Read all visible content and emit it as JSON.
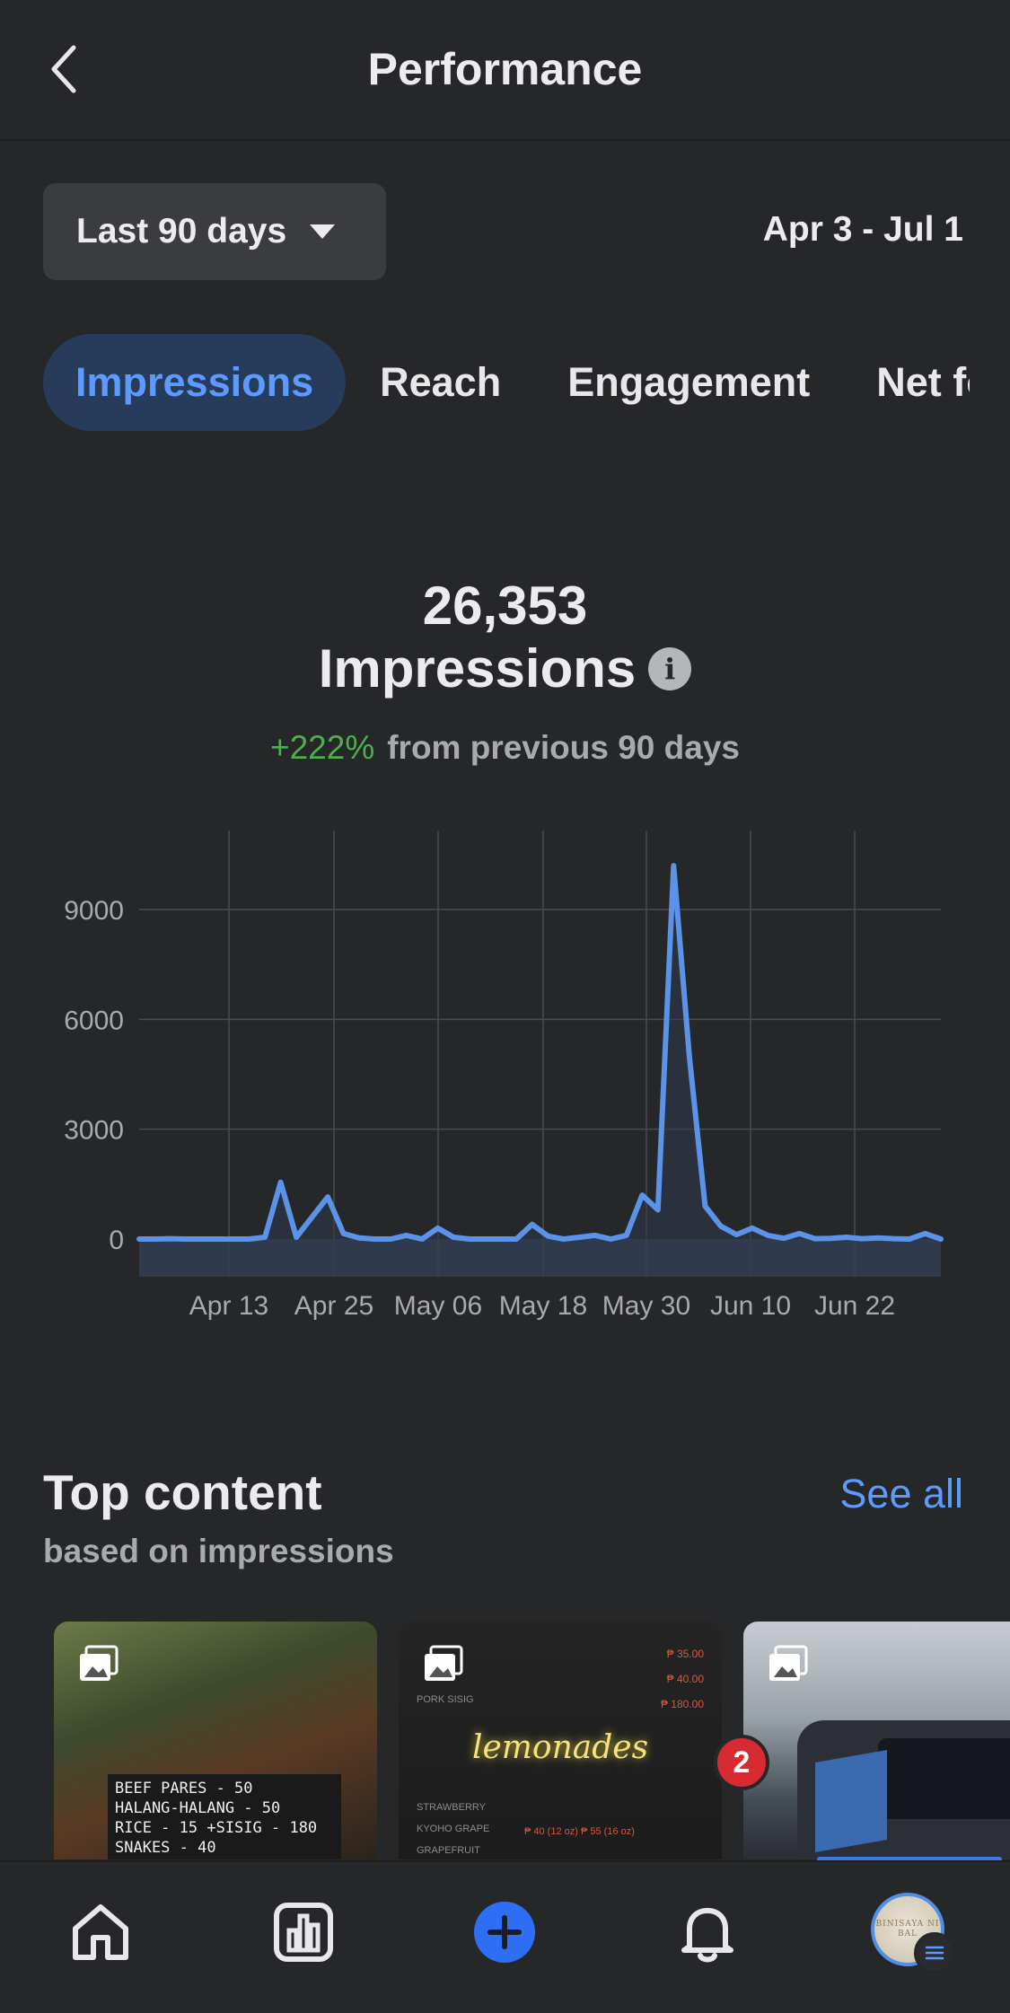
{
  "header": {
    "title": "Performance",
    "back_icon": "chevron-left-icon"
  },
  "filter": {
    "range_label": "Last 90 days",
    "date_range": "Apr 3 - Jul 1"
  },
  "tabs": [
    {
      "label": "Impressions",
      "active": true
    },
    {
      "label": "Reach",
      "active": false
    },
    {
      "label": "Engagement",
      "active": false
    },
    {
      "label": "Net followers",
      "active": false
    }
  ],
  "stat": {
    "value": "26,353",
    "label": "Impressions",
    "change_pct": "+222%",
    "change_text": "from previous 90 days"
  },
  "chart_data": {
    "type": "area",
    "title": "",
    "xlabel": "",
    "ylabel": "",
    "ylim": [
      0,
      10000
    ],
    "yticks": [
      0,
      3000,
      6000,
      9000
    ],
    "grid": true,
    "x_tick_labels": [
      "Apr 13",
      "Apr 25",
      "May 06",
      "May 18",
      "May 30",
      "Jun 10",
      "Jun 22"
    ],
    "x": [
      "Apr 3",
      "Apr 5",
      "Apr 7",
      "Apr 9",
      "Apr 11",
      "Apr 13",
      "Apr 15",
      "Apr 17",
      "Apr 19",
      "Apr 21",
      "Apr 22",
      "Apr 23",
      "Apr 25",
      "Apr 27",
      "Apr 29",
      "May 1",
      "May 3",
      "May 5",
      "May 6",
      "May 8",
      "May 10",
      "May 12",
      "May 14",
      "May 16",
      "May 18",
      "May 19",
      "May 21",
      "May 23",
      "May 25",
      "May 27",
      "May 29",
      "May 30",
      "May 31",
      "Jun 1",
      "Jun 2",
      "Jun 3",
      "Jun 4",
      "Jun 5",
      "Jun 7",
      "Jun 8",
      "Jun 10",
      "Jun 12",
      "Jun 14",
      "Jun 16",
      "Jun 18",
      "Jun 20",
      "Jun 22",
      "Jun 24",
      "Jun 26",
      "Jun 28",
      "Jun 30",
      "Jul 1"
    ],
    "series": [
      {
        "values": [
          0,
          0,
          10,
          0,
          0,
          0,
          0,
          0,
          50,
          1550,
          50,
          600,
          1150,
          150,
          30,
          0,
          0,
          100,
          0,
          300,
          50,
          0,
          0,
          0,
          0,
          400,
          80,
          0,
          50,
          100,
          0,
          100,
          1200,
          800,
          10200,
          5000,
          900,
          350,
          120,
          300,
          100,
          20,
          150,
          10,
          20,
          50,
          10,
          30,
          10,
          0,
          150,
          0
        ]
      }
    ]
  },
  "top_content": {
    "title": "Top content",
    "subtitle": "based on impressions",
    "see_all": "See all",
    "cards": [
      {
        "type": "photo",
        "lines": [
          "BEEF PARES - 50",
          "HALANG-HALANG - 50",
          "RICE - 15   +SISIG - 180",
          "SNAKES - 40"
        ]
      },
      {
        "type": "photo",
        "menu_left": [
          "PORK SISIG"
        ],
        "menu_right": [
          "₱ 35.00",
          "₱ 40.00",
          "₱ 180.00"
        ],
        "script": "lemonades",
        "menu_bottom": [
          "STRAWBERRY",
          "KYOHO GRAPE",
          "GRAPEFRUIT"
        ],
        "price": "₱ 40 (12 oz) ₱ 55 (16 oz)"
      },
      {
        "type": "photo"
      }
    ]
  },
  "bottom_nav": {
    "items": [
      "home-icon",
      "insights-icon",
      "create-icon",
      "notifications-icon",
      "profile-avatar"
    ],
    "notification_count": "2",
    "avatar_text": "BINISAYA NI BAL"
  }
}
